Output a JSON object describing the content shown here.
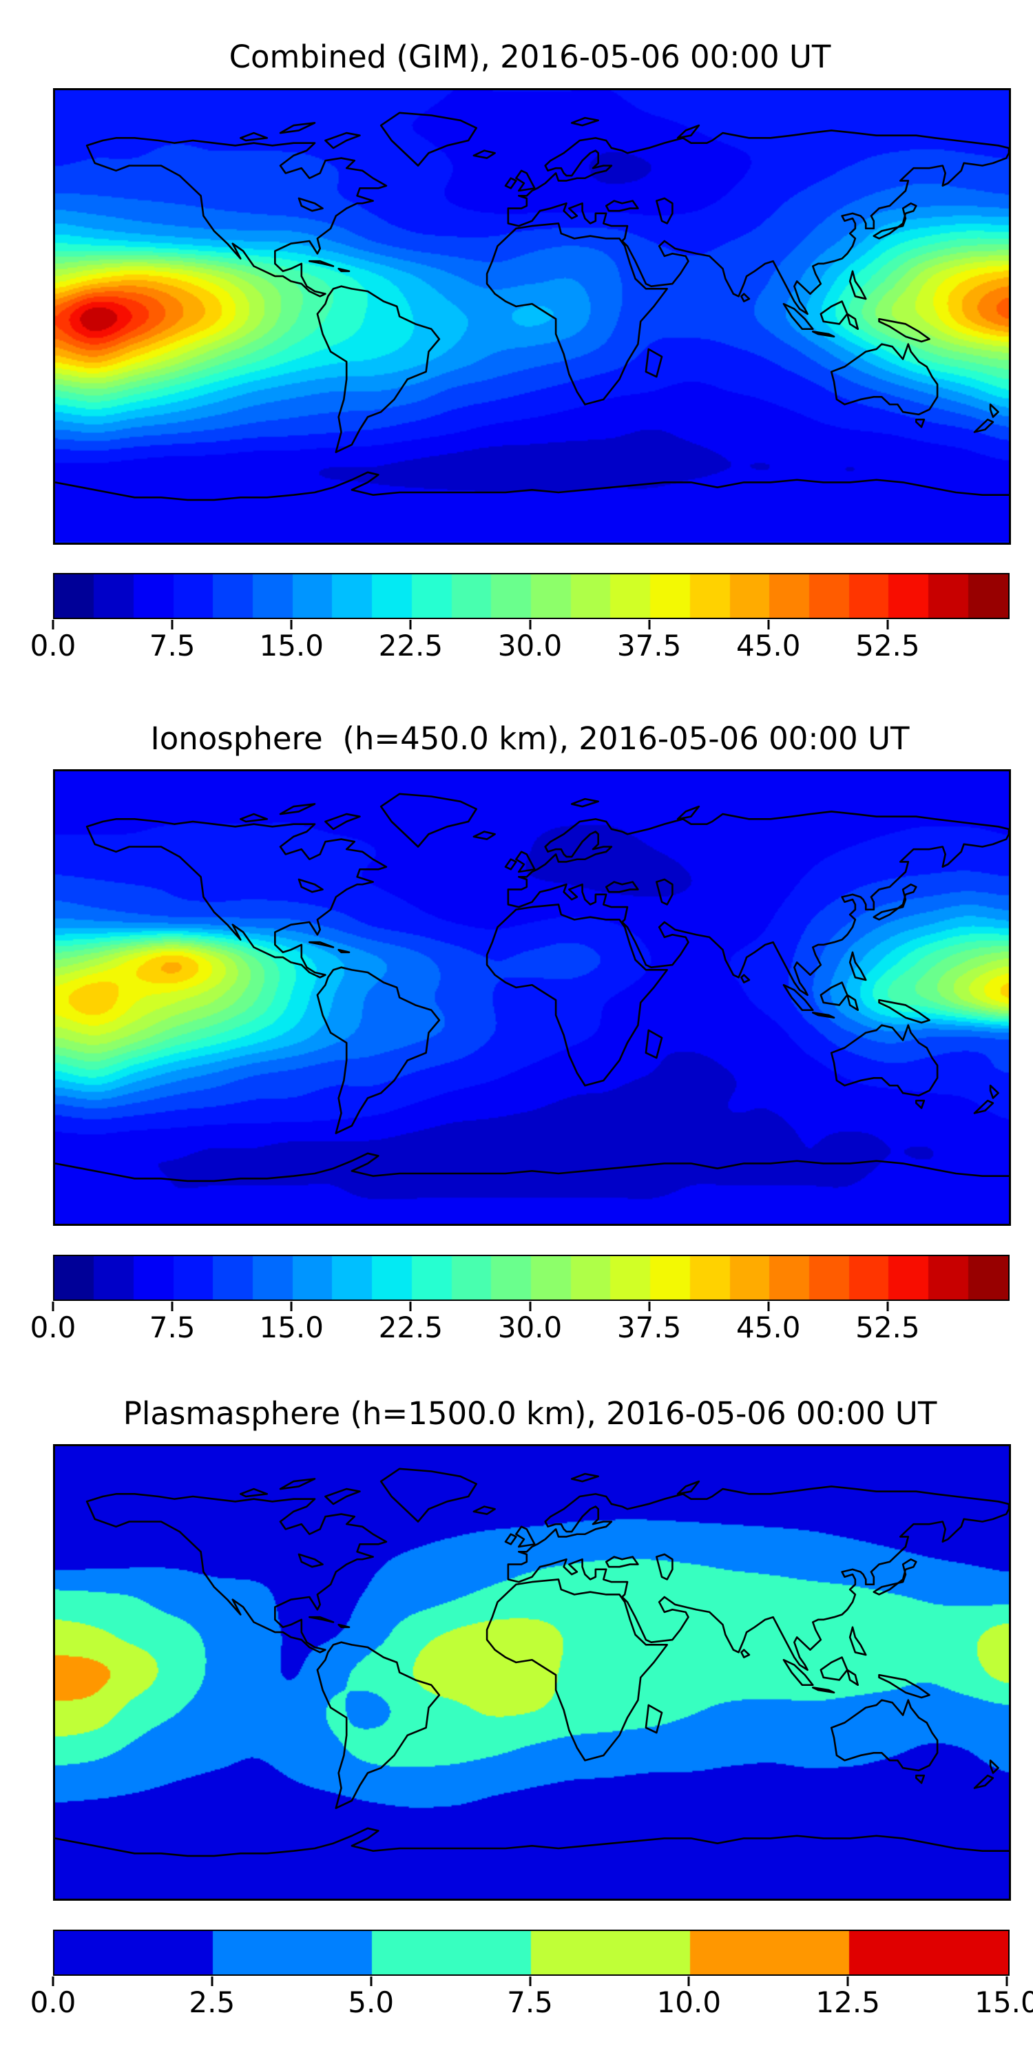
{
  "figure": {
    "background": "#ffffff",
    "frame_color": "#000000",
    "coastline_color": "#000000",
    "text_color": "#000000"
  },
  "chart_data": [
    {
      "type": "heatmap",
      "title": "Combined (GIM), 2016-05-06 00:00 UT",
      "projection": "equirectangular",
      "colormap": "jet",
      "value_min": 0,
      "value_max": 60,
      "contour_step": 2.5,
      "n_colors": 24,
      "colorbar_tick_labels": [
        "0.0",
        "7.5",
        "15.0",
        "22.5",
        "30.0",
        "37.5",
        "45.0",
        "52.5"
      ],
      "colorbar_tick_values": [
        0,
        7.5,
        15,
        22.5,
        30,
        37.5,
        45,
        52.5
      ],
      "grid": {
        "lon_start": -180,
        "lon_step": 15,
        "lat_start": 90,
        "lat_step": -15,
        "cols": 25,
        "rows": 13
      },
      "values": [
        [
          8,
          8,
          8,
          8,
          8,
          8,
          8,
          8,
          8,
          8,
          7.5,
          7.5,
          7.5,
          7.5,
          7.5,
          8,
          8,
          8,
          8,
          8,
          8,
          8,
          8,
          8,
          8
        ],
        [
          8.5,
          8.5,
          8.5,
          9,
          8.5,
          8.5,
          8,
          8,
          8,
          7.5,
          7,
          7,
          7,
          6.8,
          6.5,
          7,
          7.5,
          8,
          8,
          8.5,
          8.5,
          8.5,
          8.5,
          8.5,
          8.5
        ],
        [
          10,
          10.5,
          10.5,
          11.5,
          11,
          11,
          11,
          10,
          9,
          8.5,
          7.5,
          6.5,
          6,
          5.5,
          4.5,
          5,
          6,
          7,
          8,
          9,
          10,
          11,
          11.5,
          11,
          10.5
        ],
        [
          14,
          13.5,
          13,
          12.5,
          12,
          11.5,
          11,
          10.5,
          9.5,
          8.5,
          7.5,
          6.8,
          6.5,
          6.5,
          6.5,
          6.5,
          7,
          8,
          9.5,
          11,
          12.5,
          14,
          14.5,
          14.5,
          14
        ],
        [
          22,
          21,
          20,
          19,
          18,
          17.5,
          17,
          15,
          12.5,
          11,
          10.5,
          10.5,
          11.5,
          12,
          11.5,
          10,
          9.5,
          10,
          11,
          13,
          16,
          21,
          24,
          26,
          26
        ],
        [
          36,
          40,
          42,
          40,
          36,
          31,
          27,
          24,
          21,
          18,
          15.5,
          14,
          14.5,
          15,
          13,
          11,
          10.5,
          11,
          12.5,
          16,
          22,
          28,
          35,
          40,
          43
        ],
        [
          50,
          57,
          52,
          46,
          41,
          34,
          28,
          24.5,
          22,
          20,
          18,
          17,
          18,
          16.5,
          13,
          11,
          11,
          11.5,
          13.5,
          18,
          25,
          32,
          36,
          43,
          48
        ],
        [
          43,
          46,
          41,
          36,
          31,
          27,
          23.5,
          21.5,
          20.5,
          19,
          17,
          15,
          14,
          13,
          11.5,
          9.5,
          9,
          9.5,
          10.5,
          13,
          17,
          22,
          27,
          30,
          32
        ],
        [
          27,
          29,
          26,
          23,
          20,
          17.5,
          16,
          15,
          15,
          14,
          12,
          11,
          10,
          9,
          8,
          7.5,
          7,
          7.5,
          8,
          9,
          11,
          13,
          15.5,
          18.5,
          22
        ],
        [
          15,
          16,
          14.5,
          13.5,
          12.5,
          11.5,
          11,
          10.5,
          10,
          9,
          8,
          7,
          6.5,
          6,
          5.5,
          5,
          5.5,
          6,
          6.5,
          7,
          7.5,
          8,
          9,
          10,
          12
        ],
        [
          7,
          7,
          6.5,
          6,
          6,
          5.5,
          5.5,
          5,
          5,
          4.5,
          4,
          3.5,
          3.5,
          3.5,
          4,
          4,
          4.5,
          5,
          5,
          5.5,
          5,
          5.5,
          6,
          6.5,
          7
        ],
        [
          7,
          7,
          7,
          6.5,
          6.5,
          6.5,
          6.5,
          6.5,
          6,
          6,
          6,
          6,
          6,
          6,
          6,
          6,
          6.5,
          6.5,
          6.5,
          6.5,
          6.5,
          7,
          7,
          7,
          7
        ],
        [
          7.5,
          7.5,
          7.5,
          7.5,
          7.5,
          7.5,
          7.5,
          7.5,
          7.5,
          7.5,
          7.5,
          7.5,
          7.5,
          7.5,
          7.5,
          7.5,
          7.5,
          7.5,
          7.5,
          7.5,
          7.5,
          7.5,
          7.5,
          7.5,
          7.5
        ]
      ]
    },
    {
      "type": "heatmap",
      "title": "Ionosphere  (h=450.0 km), 2016-05-06 00:00 UT",
      "projection": "equirectangular",
      "colormap": "jet",
      "value_min": 0,
      "value_max": 60,
      "contour_step": 2.5,
      "n_colors": 24,
      "colorbar_tick_labels": [
        "0.0",
        "7.5",
        "15.0",
        "22.5",
        "30.0",
        "37.5",
        "45.0",
        "52.5"
      ],
      "colorbar_tick_values": [
        0,
        7.5,
        15,
        22.5,
        30,
        37.5,
        45,
        52.5
      ],
      "grid": {
        "lon_start": -180,
        "lon_step": 15,
        "lat_start": 90,
        "lat_step": -15,
        "cols": 25,
        "rows": 13
      },
      "values": [
        [
          7,
          7,
          7,
          7,
          7,
          7,
          7,
          7,
          7,
          7,
          6.5,
          6.5,
          6.5,
          6.5,
          6.5,
          7,
          7,
          7,
          7,
          7,
          7,
          7,
          7,
          7,
          7
        ],
        [
          7,
          7,
          7,
          7,
          7,
          7,
          7,
          6.5,
          6.5,
          6,
          5.5,
          5.5,
          5.5,
          5.5,
          5.5,
          6,
          6.5,
          6.5,
          7,
          7,
          7,
          7,
          7,
          7,
          7
        ],
        [
          8,
          8,
          8,
          8.5,
          8.5,
          8.5,
          8.5,
          8,
          7.5,
          7,
          6,
          5.5,
          5,
          4.5,
          4.5,
          5,
          5.5,
          6,
          6.5,
          7,
          7.5,
          8,
          8.5,
          8.5,
          8
        ],
        [
          11,
          10.5,
          10,
          9.5,
          9,
          9,
          8.5,
          8,
          7.5,
          7,
          6,
          5.5,
          5.2,
          5,
          4.5,
          4.5,
          5,
          5.5,
          6.5,
          8,
          9.5,
          10.5,
          11,
          11.5,
          11
        ],
        [
          16,
          15.5,
          15,
          14.5,
          14,
          13.5,
          13,
          11.5,
          9.5,
          8.5,
          7.5,
          7,
          7.5,
          8,
          7.5,
          6.5,
          6,
          6.5,
          7.5,
          10,
          12.5,
          15,
          17,
          19,
          18
        ],
        [
          30,
          33,
          38,
          42,
          36,
          28,
          22,
          18,
          15.5,
          13.5,
          11.5,
          10,
          10.5,
          11,
          9.5,
          7.5,
          7,
          7.5,
          8.5,
          11.5,
          16,
          21,
          26,
          30,
          33
        ],
        [
          39,
          42,
          38,
          36,
          33,
          28,
          22,
          17.5,
          14.5,
          13,
          12,
          10,
          9,
          8.5,
          7.5,
          6.5,
          6.5,
          7,
          8.5,
          12,
          18,
          25,
          28,
          34,
          40
        ],
        [
          33,
          35,
          32,
          28,
          25,
          22,
          19,
          16,
          14,
          13,
          12,
          10,
          9,
          8,
          7,
          5.5,
          5.5,
          6,
          6.5,
          9,
          12,
          14,
          13,
          13,
          14
        ],
        [
          22,
          24,
          20,
          17,
          15,
          13,
          12,
          11,
          11,
          10,
          9,
          8,
          7,
          6,
          5.5,
          5,
          4.5,
          5,
          5.5,
          6.5,
          8,
          9,
          9,
          9,
          10
        ],
        [
          11,
          12,
          11,
          10,
          9.5,
          9,
          9,
          8.5,
          8,
          7,
          6,
          5.5,
          5,
          4.5,
          4.5,
          4,
          4.5,
          5,
          5,
          5.5,
          6,
          6,
          6.5,
          7,
          8
        ],
        [
          6,
          6,
          5.5,
          5.5,
          5,
          5,
          4.5,
          4.5,
          4.5,
          4,
          3.5,
          3.5,
          3.5,
          3.5,
          3.5,
          4,
          4,
          4.5,
          4.5,
          5,
          4.5,
          5,
          5,
          5.5,
          6
        ],
        [
          5.5,
          5.5,
          5.5,
          5,
          5,
          5,
          5,
          5,
          4.5,
          4.5,
          4.5,
          4.5,
          4.5,
          4.5,
          4.5,
          4.5,
          5,
          5,
          5,
          5,
          5,
          5.5,
          5.5,
          5.5,
          5.5
        ],
        [
          6,
          6,
          6,
          6,
          6,
          6,
          6,
          6,
          6,
          6,
          6,
          6,
          6,
          6,
          6,
          6,
          6,
          6,
          6,
          6,
          6,
          6,
          6,
          6,
          6
        ]
      ]
    },
    {
      "type": "heatmap",
      "title": "Plasmasphere (h=1500.0 km), 2016-05-06 00:00 UT",
      "projection": "equirectangular",
      "colormap": "jet",
      "value_min": 0,
      "value_max": 15,
      "contour_step": 2.5,
      "n_colors": 6,
      "colorbar_tick_labels": [
        "0.0",
        "2.5",
        "5.0",
        "7.5",
        "10.0",
        "12.5",
        "15.0"
      ],
      "colorbar_tick_values": [
        0,
        2.5,
        5,
        7.5,
        10,
        12.5,
        15
      ],
      "grid": {
        "lon_start": -180,
        "lon_step": 15,
        "lat_start": 90,
        "lat_step": -15,
        "cols": 25,
        "rows": 13
      },
      "values": [
        [
          1.5,
          1.5,
          1.5,
          1.5,
          1.5,
          1.5,
          1.5,
          1.5,
          1.5,
          1.5,
          1.5,
          1.5,
          1.5,
          1.5,
          1.5,
          1.5,
          1.5,
          1.5,
          1.5,
          1.5,
          1.5,
          1.5,
          1.5,
          1.5,
          1.5
        ],
        [
          1.5,
          1.5,
          1.5,
          1.5,
          1.5,
          1.5,
          1.5,
          1.5,
          1.5,
          1.5,
          1.5,
          1.5,
          1.5,
          1.5,
          1.5,
          1.5,
          1.5,
          1.5,
          1.5,
          1.5,
          1.5,
          1.5,
          1.5,
          1.5,
          1.5
        ],
        [
          1.6,
          1.6,
          1.6,
          1.6,
          1.6,
          1.6,
          1.6,
          1.6,
          1.7,
          1.8,
          2.0,
          2.2,
          2.3,
          2.5,
          2.6,
          2.6,
          2.5,
          2.4,
          2.3,
          2.2,
          2.0,
          1.8,
          1.7,
          1.6,
          1.6
        ],
        [
          1.6,
          1.8,
          2.0,
          2.2,
          2.0,
          1.8,
          1.8,
          2.0,
          2.3,
          2.8,
          3.4,
          4.0,
          4.5,
          4.8,
          5.0,
          5.0,
          4.8,
          4.5,
          4.2,
          3.8,
          3.4,
          3.0,
          2.6,
          2.3,
          2.0
        ],
        [
          5.8,
          5.5,
          5.0,
          3.8,
          3.2,
          3.0,
          2.0,
          2.0,
          2.8,
          3.8,
          4.8,
          5.6,
          6.0,
          6.2,
          6.2,
          6.2,
          6.2,
          6.0,
          6.0,
          5.8,
          5.6,
          5.2,
          4.8,
          4.4,
          4.2
        ],
        [
          8.5,
          8.0,
          6.8,
          6.0,
          4.4,
          3.2,
          2.3,
          2.4,
          4.0,
          6.5,
          7.8,
          8.5,
          8.4,
          7.2,
          6.6,
          6.5,
          6.4,
          6.4,
          6.4,
          6.3,
          6.2,
          6.0,
          5.6,
          6.9,
          8.6
        ],
        [
          10.8,
          10.5,
          8.8,
          6.5,
          4.6,
          3.4,
          2.4,
          4.2,
          6.0,
          7.5,
          8.8,
          9.0,
          8.6,
          7.0,
          6.5,
          6.3,
          6.3,
          6.3,
          6.3,
          6.2,
          6.0,
          5.8,
          5.4,
          6.6,
          8.4
        ],
        [
          9.5,
          9.0,
          6.6,
          5.2,
          4.0,
          3.0,
          3.2,
          5.2,
          4.2,
          6.4,
          7.0,
          7.8,
          7.6,
          6.6,
          6.2,
          5.8,
          5.2,
          4.6,
          4.4,
          4.6,
          4.4,
          4.0,
          3.6,
          4.0,
          4.6
        ],
        [
          6.6,
          6.0,
          4.6,
          3.6,
          3.0,
          2.6,
          3.0,
          4.6,
          5.8,
          6.0,
          6.0,
          5.6,
          4.8,
          4.2,
          4.0,
          3.8,
          3.6,
          3.2,
          3.0,
          3.2,
          3.2,
          2.8,
          2.4,
          2.6,
          3.6
        ],
        [
          3.4,
          3.2,
          2.8,
          2.4,
          2.2,
          2.2,
          2.4,
          2.8,
          3.4,
          3.8,
          3.6,
          3.0,
          2.6,
          2.3,
          2.2,
          2.0,
          2.0,
          1.9,
          1.9,
          2.0,
          1.9,
          1.8,
          1.7,
          1.7,
          2.0
        ],
        [
          1.8,
          1.7,
          1.6,
          1.5,
          1.5,
          1.5,
          1.5,
          1.6,
          1.7,
          1.8,
          1.8,
          1.7,
          1.6,
          1.5,
          1.5,
          1.5,
          1.5,
          1.5,
          1.5,
          1.5,
          1.5,
          1.4,
          1.4,
          1.4,
          1.5
        ],
        [
          1.3,
          1.3,
          1.3,
          1.3,
          1.3,
          1.3,
          1.3,
          1.3,
          1.3,
          1.3,
          1.3,
          1.3,
          1.3,
          1.3,
          1.3,
          1.3,
          1.3,
          1.3,
          1.3,
          1.3,
          1.3,
          1.3,
          1.3,
          1.3,
          1.3
        ],
        [
          1.3,
          1.3,
          1.3,
          1.3,
          1.3,
          1.3,
          1.3,
          1.3,
          1.3,
          1.3,
          1.3,
          1.3,
          1.3,
          1.3,
          1.3,
          1.3,
          1.3,
          1.3,
          1.3,
          1.3,
          1.3,
          1.3,
          1.3,
          1.3,
          1.3
        ]
      ]
    }
  ]
}
